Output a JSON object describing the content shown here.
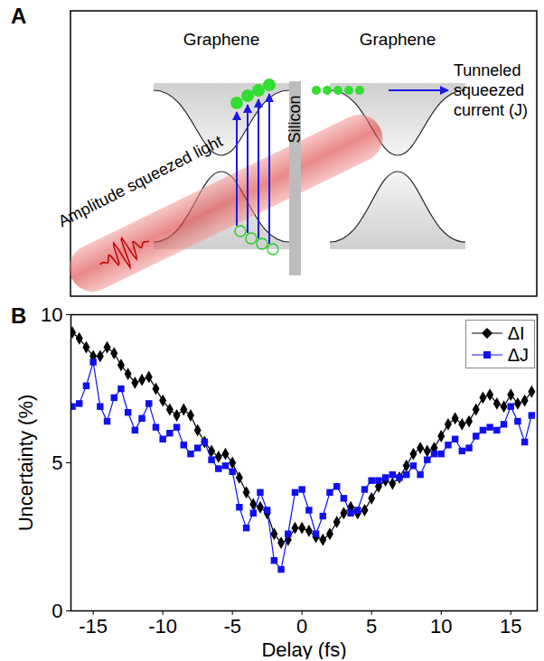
{
  "diagram": {
    "panel_label": "A",
    "left_layer": "Graphene",
    "barrier": "Silicon",
    "right_layer": "Graphene",
    "beam_label": "Amplitude squeezed light",
    "output_label": "Tunneled squeezed current (J)"
  },
  "chart_data": {
    "panel_label": "B",
    "type": "line",
    "xlabel": "Delay (fs)",
    "ylabel": "Uncertainty (%)",
    "x": [
      -16.5,
      -16,
      -15.5,
      -15,
      -14.5,
      -14,
      -13.5,
      -13,
      -12.5,
      -12,
      -11.5,
      -11,
      -10.5,
      -10,
      -9.5,
      -9,
      -8.5,
      -8,
      -7.5,
      -7,
      -6.5,
      -6,
      -5.5,
      -5,
      -4.5,
      -4,
      -3.5,
      -3,
      -2.5,
      -2,
      -1.5,
      -1,
      -0.5,
      0,
      0.5,
      1,
      1.5,
      2,
      2.5,
      3,
      3.5,
      4,
      4.5,
      5,
      5.5,
      6,
      6.5,
      7,
      7.5,
      8,
      8.5,
      9,
      9.5,
      10,
      10.5,
      11,
      11.5,
      12,
      12.5,
      13,
      13.5,
      14,
      14.5,
      15,
      15.5,
      16,
      16.5
    ],
    "series": [
      {
        "name": "ΔI",
        "color": "#000000",
        "marker": "diamond",
        "line_style": "solid",
        "values": [
          9.4,
          9.2,
          8.9,
          8.6,
          8.6,
          8.9,
          8.7,
          8.3,
          8.0,
          7.7,
          7.8,
          7.9,
          7.5,
          7.1,
          6.8,
          6.6,
          6.8,
          6.6,
          6.1,
          5.7,
          5.4,
          5.2,
          5.3,
          5.0,
          4.5,
          4.0,
          3.6,
          3.5,
          3.3,
          2.6,
          2.3,
          2.4,
          2.8,
          2.8,
          2.7,
          2.5,
          2.4,
          2.6,
          3.0,
          3.3,
          3.5,
          3.3,
          3.4,
          3.8,
          4.2,
          4.4,
          4.3,
          4.5,
          4.9,
          5.3,
          5.5,
          5.4,
          5.5,
          5.9,
          6.3,
          6.5,
          6.3,
          6.4,
          6.8,
          7.2,
          7.3,
          7.0,
          6.9,
          7.3,
          7.0,
          7.1,
          7.4
        ]
      },
      {
        "name": "ΔJ",
        "color": "#1010f0",
        "marker": "square",
        "line_style": "solid",
        "values": [
          6.9,
          7.0,
          7.6,
          8.4,
          6.9,
          6.4,
          7.2,
          7.5,
          6.7,
          6.1,
          6.5,
          7.0,
          6.2,
          5.8,
          6.0,
          6.2,
          5.6,
          5.3,
          5.5,
          5.7,
          5.1,
          4.8,
          4.9,
          4.7,
          3.5,
          2.8,
          3.3,
          4.0,
          3.4,
          1.7,
          1.4,
          2.6,
          4.0,
          4.1,
          3.4,
          2.6,
          3.2,
          4.0,
          4.2,
          3.8,
          3.3,
          3.4,
          4.1,
          4.4,
          4.4,
          4.5,
          4.6,
          4.5,
          4.6,
          4.9,
          4.6,
          5.1,
          5.3,
          5.3,
          5.6,
          5.8,
          5.4,
          5.5,
          5.9,
          6.1,
          6.2,
          6.1,
          6.3,
          6.9,
          6.4,
          5.7,
          6.6
        ]
      }
    ],
    "xlim": [
      -16.6,
      16.9
    ],
    "xticks": [
      -15,
      -10,
      -5,
      0,
      5,
      10,
      15
    ],
    "ylim": [
      0,
      10
    ],
    "yticks": [
      0,
      5,
      10
    ],
    "grid": false,
    "legend": "upper right"
  }
}
